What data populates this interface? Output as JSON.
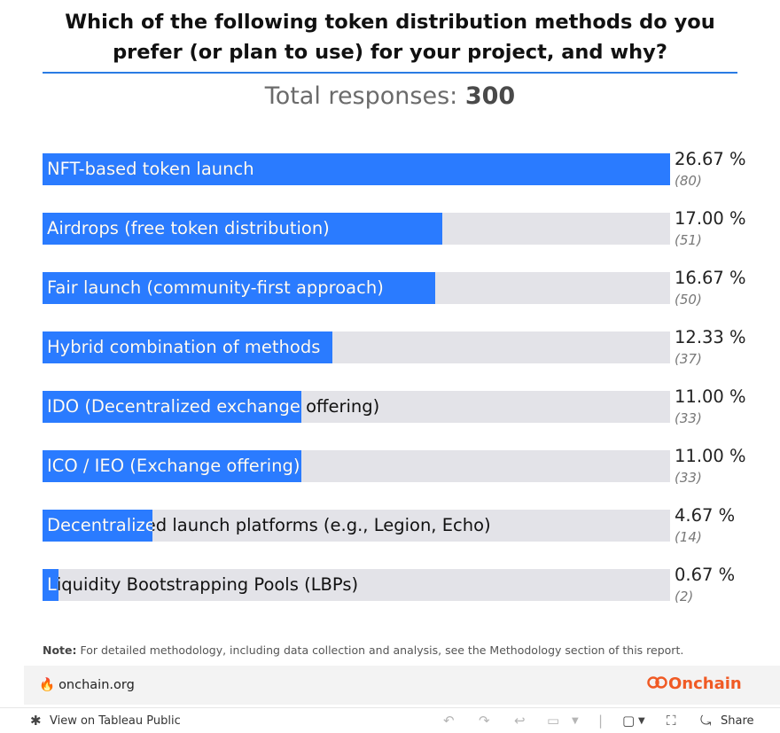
{
  "title": "Which of the following token distribution methods do you prefer (or plan to use) for your project, and why?",
  "total_label": "Total responses:",
  "total_value": "300",
  "chart_data": {
    "type": "bar",
    "orientation": "horizontal",
    "max_value": 26.67,
    "categories": [
      "NFT-based token launch",
      "Airdrops (free token distribution)",
      "Fair launch (community-first approach)",
      "Hybrid combination of methods",
      "IDO (Decentralized exchange offering)",
      "ICO / IEO (Exchange offering)",
      "Decentralized launch platforms (e.g., Legion, Echo)",
      "Liquidity Bootstrapping Pools (LBPs)"
    ],
    "values": [
      26.67,
      17.0,
      16.67,
      12.33,
      11.0,
      11.0,
      4.67,
      0.67
    ],
    "percent_labels": [
      "26.67 %",
      "17.00 %",
      "16.67 %",
      "12.33 %",
      "11.00 %",
      "11.00 %",
      "4.67 %",
      "0.67 %"
    ],
    "count_labels": [
      "(80)",
      "(51)",
      "(50)",
      "(37)",
      "(33)",
      "(33)",
      "(14)",
      "(2)"
    ],
    "bar_color": "#2a7bff",
    "track_color": "#e3e3e8"
  },
  "note_label": "Note:",
  "note_text": " For detailed methodology, including data collection and analysis, see the Methodology section of this report.",
  "footer": {
    "site": "onchain.org",
    "brand": "Onchain"
  },
  "toolbar": {
    "view_label": "View on Tableau Public",
    "share_label": "Share"
  }
}
